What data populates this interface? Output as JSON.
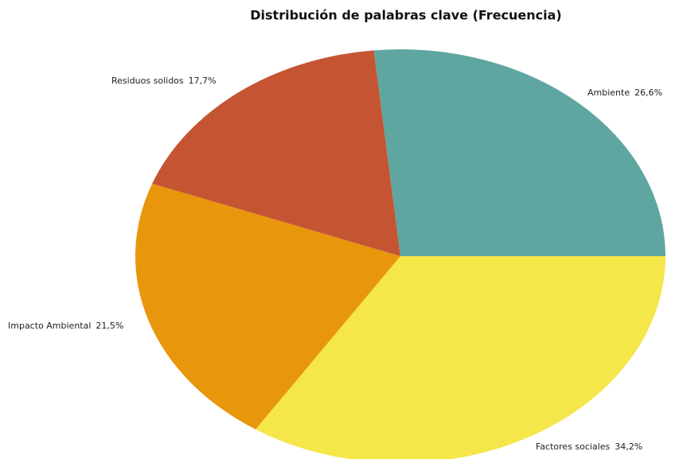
{
  "chart_data": {
    "type": "pie",
    "title": "Distribución de palabras clave (Frecuencia)",
    "categories": [
      "Ambiente",
      "Factores sociales",
      "Impacto Ambiental",
      "Residuos solidos"
    ],
    "values": [
      26.6,
      34.2,
      21.5,
      17.7
    ],
    "value_labels": [
      "26,6%",
      "34,2%",
      "21,5%",
      "17,7%"
    ],
    "colors": [
      "#5fa6a0",
      "#f5e64a",
      "#e8960c",
      "#c55532"
    ]
  }
}
